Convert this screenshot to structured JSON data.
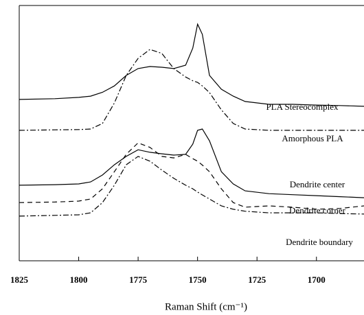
{
  "chart_data": {
    "type": "line",
    "xlabel": "Raman Shift (cm⁻¹)",
    "x": [
      1825,
      1810,
      1800,
      1795,
      1790,
      1785,
      1780,
      1775,
      1770,
      1765,
      1760,
      1755,
      1752,
      1750,
      1748,
      1745,
      1740,
      1735,
      1730,
      1720,
      1710,
      1700,
      1690,
      1680
    ],
    "xlim": [
      1825,
      1680
    ],
    "xticks": [
      1825,
      1800,
      1775,
      1750,
      1725,
      1700
    ],
    "ylim": [
      0,
      100
    ],
    "series": [
      {
        "name": "PLA Stereocomplex",
        "color": "#000000",
        "dash": "solid",
        "values": [
          63.2,
          63.5,
          64.0,
          64.5,
          66.0,
          68.5,
          72.6,
          75.3,
          76.1,
          75.8,
          75.3,
          76.6,
          83.3,
          92.7,
          88.7,
          72.6,
          67.2,
          64.5,
          62.4,
          61.3,
          61.3,
          61.0,
          60.8,
          60.5
        ]
      },
      {
        "name": "Amorphous PLA",
        "color": "#000000",
        "dash": "dashdot",
        "values": [
          51.1,
          51.3,
          51.4,
          51.6,
          53.8,
          61.8,
          72.6,
          79.3,
          82.8,
          81.2,
          75.3,
          72.0,
          70.5,
          69.9,
          68.5,
          65.9,
          59.1,
          53.8,
          51.6,
          51.1,
          51.1,
          51.1,
          51.1,
          51.1
        ]
      },
      {
        "name": "Dendrite center",
        "color": "#000000",
        "dash": "solid",
        "values": [
          29.6,
          29.8,
          30.1,
          30.9,
          33.6,
          37.6,
          40.9,
          43.5,
          42.5,
          41.9,
          41.4,
          41.7,
          45.7,
          51.1,
          51.6,
          47.0,
          34.9,
          30.1,
          27.4,
          26.3,
          25.9,
          25.5,
          25.1,
          24.7
        ]
      },
      {
        "name": "Dendrite corner",
        "color": "#000000",
        "dash": "dashed",
        "values": [
          22.8,
          23.0,
          23.4,
          24.2,
          28.2,
          34.9,
          41.7,
          46.2,
          44.4,
          40.9,
          40.3,
          41.7,
          40.0,
          39.0,
          37.5,
          34.9,
          28.2,
          22.8,
          21.0,
          21.5,
          21.0,
          20.2,
          20.5,
          21.5
        ]
      },
      {
        "name": "Dendrite boundary",
        "color": "#000000",
        "dash": "dashdot",
        "values": [
          17.5,
          17.8,
          18.0,
          18.8,
          22.8,
          29.6,
          37.6,
          40.9,
          39.0,
          35.5,
          32.3,
          29.6,
          28.2,
          26.9,
          25.8,
          24.2,
          21.5,
          20.2,
          19.4,
          18.8,
          18.8,
          18.8,
          18.5,
          18.3
        ]
      }
    ]
  }
}
